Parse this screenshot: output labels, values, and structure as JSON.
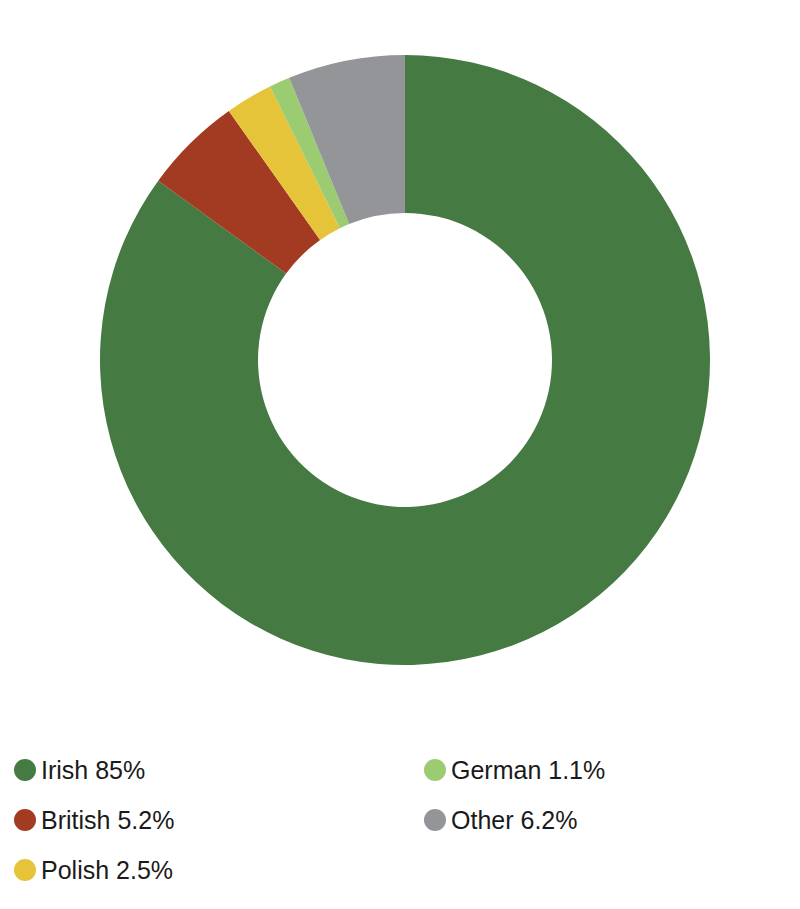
{
  "chart_data": {
    "type": "pie",
    "categories": [
      "Irish",
      "British",
      "Polish",
      "German",
      "Other"
    ],
    "values": [
      85,
      5.2,
      2.5,
      1.1,
      6.2
    ],
    "value_labels": [
      "85%",
      "5.2%",
      "2.5%",
      "1.1%",
      "6.2%"
    ],
    "colors": [
      "#457a42",
      "#a33a22",
      "#e6c43a",
      "#9ccc72",
      "#939598"
    ],
    "legend": "bottom"
  }
}
